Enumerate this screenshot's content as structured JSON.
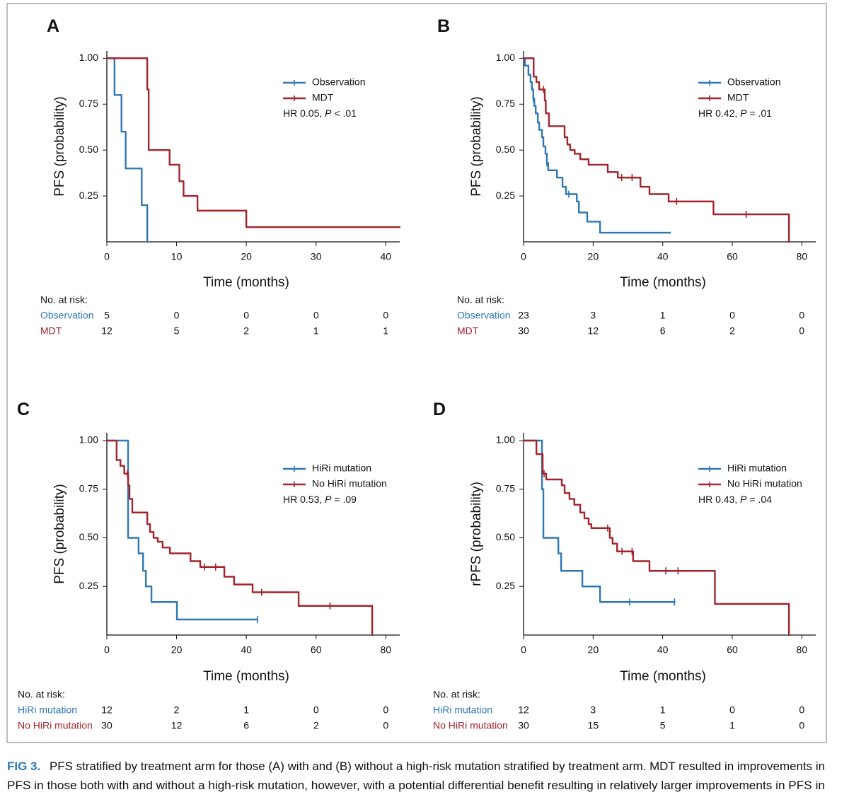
{
  "chart_data": [
    {
      "type": "step",
      "panel": "A",
      "ylabel": "PFS (probability)",
      "xlabel": "Time (months)",
      "xlim": [
        0,
        42
      ],
      "ylim": [
        0,
        1.04
      ],
      "xticks": [
        0,
        10,
        20,
        30,
        40
      ],
      "yticks": [
        {
          "value": 0.25,
          "label": "0.25"
        },
        {
          "value": 0.5,
          "label": "0.50"
        },
        {
          "value": 0.75,
          "label": "0.75"
        },
        {
          "value": 1,
          "label": "1.00"
        }
      ],
      "annotation": [
        "HR 0.05, ",
        "P",
        " < .01"
      ],
      "risk_title": "No. at risk:",
      "series": [
        {
          "name": "Observation",
          "color": "#2f77b4",
          "x": [
            0,
            1.1,
            2.1,
            2.7,
            5.0,
            5.8
          ],
          "values": [
            1,
            0.8,
            0.6,
            0.4,
            0.2,
            0
          ],
          "censored_x": [],
          "censored_values": [],
          "at_risk": [
            5,
            0,
            0,
            0,
            0
          ]
        },
        {
          "name": "MDT",
          "color": "#a3232b",
          "x": [
            0,
            5.8,
            6.0,
            9.0,
            10.4,
            11.0,
            13.0,
            20.0,
            42
          ],
          "values": [
            1,
            0.83,
            0.5,
            0.42,
            0.33,
            0.25,
            0.17,
            0.08,
            0.08
          ],
          "censored_x": [],
          "censored_values": [],
          "at_risk": [
            12,
            5,
            2,
            1,
            1
          ]
        }
      ]
    },
    {
      "type": "step",
      "panel": "B",
      "ylabel": "PFS (probability)",
      "xlabel": "Time (months)",
      "xlim": [
        0,
        84
      ],
      "ylim": [
        0,
        1.04
      ],
      "xticks": [
        0,
        20,
        40,
        60,
        80
      ],
      "yticks": [
        {
          "value": 0.25,
          "label": "0.25"
        },
        {
          "value": 0.5,
          "label": "0.50"
        },
        {
          "value": 0.75,
          "label": "0.75"
        },
        {
          "value": 1,
          "label": "1.00"
        }
      ],
      "annotation": [
        "HR 0.42, ",
        "P",
        " = .01"
      ],
      "risk_title": "No. at risk:",
      "series": [
        {
          "name": "Observation",
          "color": "#2f77b4",
          "x": [
            0,
            0.4,
            1.4,
            2.0,
            2.4,
            2.8,
            3.1,
            3.5,
            4.1,
            4.5,
            5.3,
            5.7,
            6.3,
            6.7,
            7.1,
            9.6,
            11.2,
            12.2,
            15.3,
            15.9,
            18.3,
            22.0,
            42.1
          ],
          "values": [
            1,
            0.96,
            0.91,
            0.87,
            0.83,
            0.78,
            0.74,
            0.7,
            0.65,
            0.61,
            0.57,
            0.52,
            0.48,
            0.43,
            0.39,
            0.35,
            0.3,
            0.26,
            0.22,
            0.16,
            0.11,
            0.05,
            0.05
          ],
          "censored_x": [
            2.8,
            6.7,
            13.0
          ],
          "censored_values": [
            0.78,
            0.43,
            0.26
          ],
          "at_risk": [
            23,
            3,
            1,
            0,
            0
          ]
        },
        {
          "name": "MDT",
          "color": "#a3232b",
          "x": [
            0,
            2.9,
            3.7,
            4.5,
            6.1,
            6.4,
            7.3,
            11.8,
            12.6,
            13.4,
            14.7,
            16.3,
            18.7,
            24.2,
            27.1,
            33.6,
            36.2,
            41.7,
            54.6,
            76.3
          ],
          "values": [
            1,
            0.9,
            0.87,
            0.83,
            0.77,
            0.7,
            0.63,
            0.57,
            0.53,
            0.5,
            0.48,
            0.45,
            0.42,
            0.38,
            0.35,
            0.3,
            0.26,
            0.22,
            0.15,
            0
          ],
          "censored_x": [
            5.7,
            28.2,
            31.2,
            44.0,
            64.0
          ],
          "censored_values": [
            0.83,
            0.35,
            0.35,
            0.22,
            0.15
          ],
          "at_risk": [
            30,
            12,
            6,
            2,
            0
          ]
        }
      ]
    },
    {
      "type": "step",
      "panel": "C",
      "ylabel": "PFS (probability)",
      "xlabel": "Time (months)",
      "xlim": [
        0,
        84
      ],
      "ylim": [
        0,
        1.04
      ],
      "xticks": [
        0,
        20,
        40,
        60,
        80
      ],
      "yticks": [
        {
          "value": 0.25,
          "label": "0.25"
        },
        {
          "value": 0.5,
          "label": "0.50"
        },
        {
          "value": 0.75,
          "label": "0.75"
        },
        {
          "value": 1,
          "label": "1.00"
        }
      ],
      "annotation": [
        "HR 0.53, ",
        "P",
        " = .09"
      ],
      "risk_title": "No. at risk:",
      "series": [
        {
          "name": "HiRi mutation",
          "color": "#2f77b4",
          "x": [
            0,
            6.1,
            9.1,
            10.4,
            11.2,
            12.8,
            20.1,
            43.2
          ],
          "values": [
            1,
            0.5,
            0.42,
            0.33,
            0.25,
            0.17,
            0.08,
            0.08
          ],
          "censored_x": [
            43.2
          ],
          "censored_values": [
            0.08
          ],
          "at_risk": [
            12,
            2,
            1,
            0,
            0
          ]
        },
        {
          "name": "No HiRi mutation",
          "color": "#a3232b",
          "x": [
            0,
            2.8,
            3.9,
            5.0,
            6.1,
            6.5,
            7.3,
            11.6,
            12.4,
            13.4,
            14.6,
            16.0,
            18.1,
            24.0,
            26.8,
            33.7,
            36.5,
            41.8,
            55.0,
            76.1
          ],
          "values": [
            1,
            0.9,
            0.87,
            0.83,
            0.77,
            0.7,
            0.63,
            0.57,
            0.53,
            0.5,
            0.48,
            0.45,
            0.42,
            0.38,
            0.35,
            0.3,
            0.26,
            0.22,
            0.15,
            0
          ],
          "censored_x": [
            5.9,
            28.0,
            31.2,
            44.4,
            64.0
          ],
          "censored_values": [
            0.83,
            0.35,
            0.35,
            0.22,
            0.15
          ],
          "at_risk": [
            30,
            12,
            6,
            2,
            0
          ]
        }
      ]
    },
    {
      "type": "step",
      "panel": "D",
      "ylabel": "rPFS (probability)",
      "xlabel": "Time (months)",
      "xlim": [
        0,
        84
      ],
      "ylim": [
        0,
        1.04
      ],
      "xticks": [
        0,
        20,
        40,
        60,
        80
      ],
      "yticks": [
        {
          "value": 0.25,
          "label": "0.25"
        },
        {
          "value": 0.5,
          "label": "0.50"
        },
        {
          "value": 0.75,
          "label": "0.75"
        },
        {
          "value": 1,
          "label": "1.00"
        }
      ],
      "annotation": [
        "HR 0.43, ",
        "P",
        " = .04"
      ],
      "risk_title": "No. at risk:",
      "series": [
        {
          "name": "HiRi mutation",
          "color": "#2f77b4",
          "x": [
            0,
            5.3,
            5.7,
            10.0,
            10.8,
            16.9,
            22.0,
            43.4
          ],
          "values": [
            1,
            0.75,
            0.5,
            0.42,
            0.33,
            0.25,
            0.17,
            0.17
          ],
          "censored_x": [
            30.5,
            43.4
          ],
          "censored_values": [
            0.17,
            0.17
          ],
          "at_risk": [
            12,
            3,
            1,
            0,
            0
          ]
        },
        {
          "name": "No HiRi mutation",
          "color": "#a3232b",
          "x": [
            0,
            3.7,
            5.5,
            6.5,
            11.0,
            11.8,
            13.2,
            14.6,
            16.3,
            17.5,
            18.7,
            19.5,
            24.8,
            25.6,
            26.9,
            31.5,
            36.2,
            55.0,
            76.3
          ],
          "values": [
            1,
            0.93,
            0.83,
            0.8,
            0.77,
            0.73,
            0.7,
            0.67,
            0.63,
            0.6,
            0.57,
            0.55,
            0.5,
            0.47,
            0.43,
            0.38,
            0.33,
            0.16,
            0
          ],
          "censored_x": [
            5.9,
            24.2,
            28.3,
            31.2,
            40.9,
            44.4
          ],
          "censored_values": [
            0.83,
            0.55,
            0.43,
            0.43,
            0.33,
            0.33
          ],
          "at_risk": [
            30,
            15,
            5,
            1,
            0
          ]
        }
      ]
    }
  ],
  "caption": {
    "label": "FIG 3.",
    "line1": "PFS stratified by treatment arm for those (A) with and (B) without a high-risk mutation stratified by treatment arm. MDT resulted in improvements in",
    "line2": "PFS in those both with and without a high-risk mutation, however, with a potential differential benefit resulting in relatively larger improvements in PFS in"
  }
}
